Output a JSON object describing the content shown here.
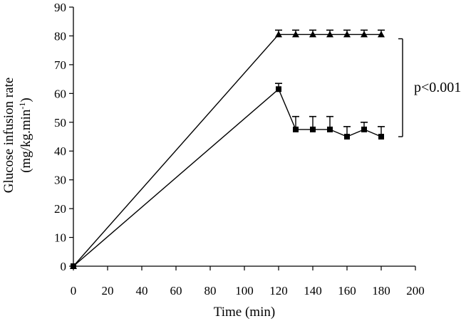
{
  "chart_data": {
    "type": "line",
    "xlabel": "Time (min)",
    "ylabel_line1": "Glucose infusion rate",
    "ylabel_line2_base": "(mg/kg.min",
    "ylabel_line2_sup": "-1",
    "ylabel_line2_end": ")",
    "xlim": [
      0,
      200
    ],
    "ylim": [
      0,
      90
    ],
    "xticks": [
      0,
      20,
      40,
      60,
      80,
      100,
      120,
      140,
      160,
      180,
      200
    ],
    "yticks": [
      0,
      10,
      20,
      30,
      40,
      50,
      60,
      70,
      80,
      90
    ],
    "grid": false,
    "series": [
      {
        "marker": "triangle",
        "color": "#000000",
        "points": [
          {
            "x": 0,
            "y": 0,
            "err": 0
          },
          {
            "x": 120,
            "y": 80.5,
            "err": 1.5
          },
          {
            "x": 130,
            "y": 80.5,
            "err": 1.5
          },
          {
            "x": 140,
            "y": 80.5,
            "err": 1.5
          },
          {
            "x": 150,
            "y": 80.5,
            "err": 1.5
          },
          {
            "x": 160,
            "y": 80.5,
            "err": 1.5
          },
          {
            "x": 170,
            "y": 80.5,
            "err": 1.5
          },
          {
            "x": 180,
            "y": 80.5,
            "err": 1.5
          }
        ]
      },
      {
        "marker": "square",
        "color": "#000000",
        "points": [
          {
            "x": 0,
            "y": 0,
            "err": 0
          },
          {
            "x": 120,
            "y": 61.5,
            "err": 2
          },
          {
            "x": 130,
            "y": 47.5,
            "err": 4.5
          },
          {
            "x": 140,
            "y": 47.5,
            "err": 4.5
          },
          {
            "x": 150,
            "y": 47.5,
            "err": 4.5
          },
          {
            "x": 160,
            "y": 45,
            "err": 3.5
          },
          {
            "x": 170,
            "y": 47.5,
            "err": 2.5
          },
          {
            "x": 180,
            "y": 45,
            "err": 3.5
          }
        ]
      }
    ],
    "annotation": {
      "text": "p<0.001",
      "bracket_y_range": [
        45,
        79
      ]
    }
  }
}
